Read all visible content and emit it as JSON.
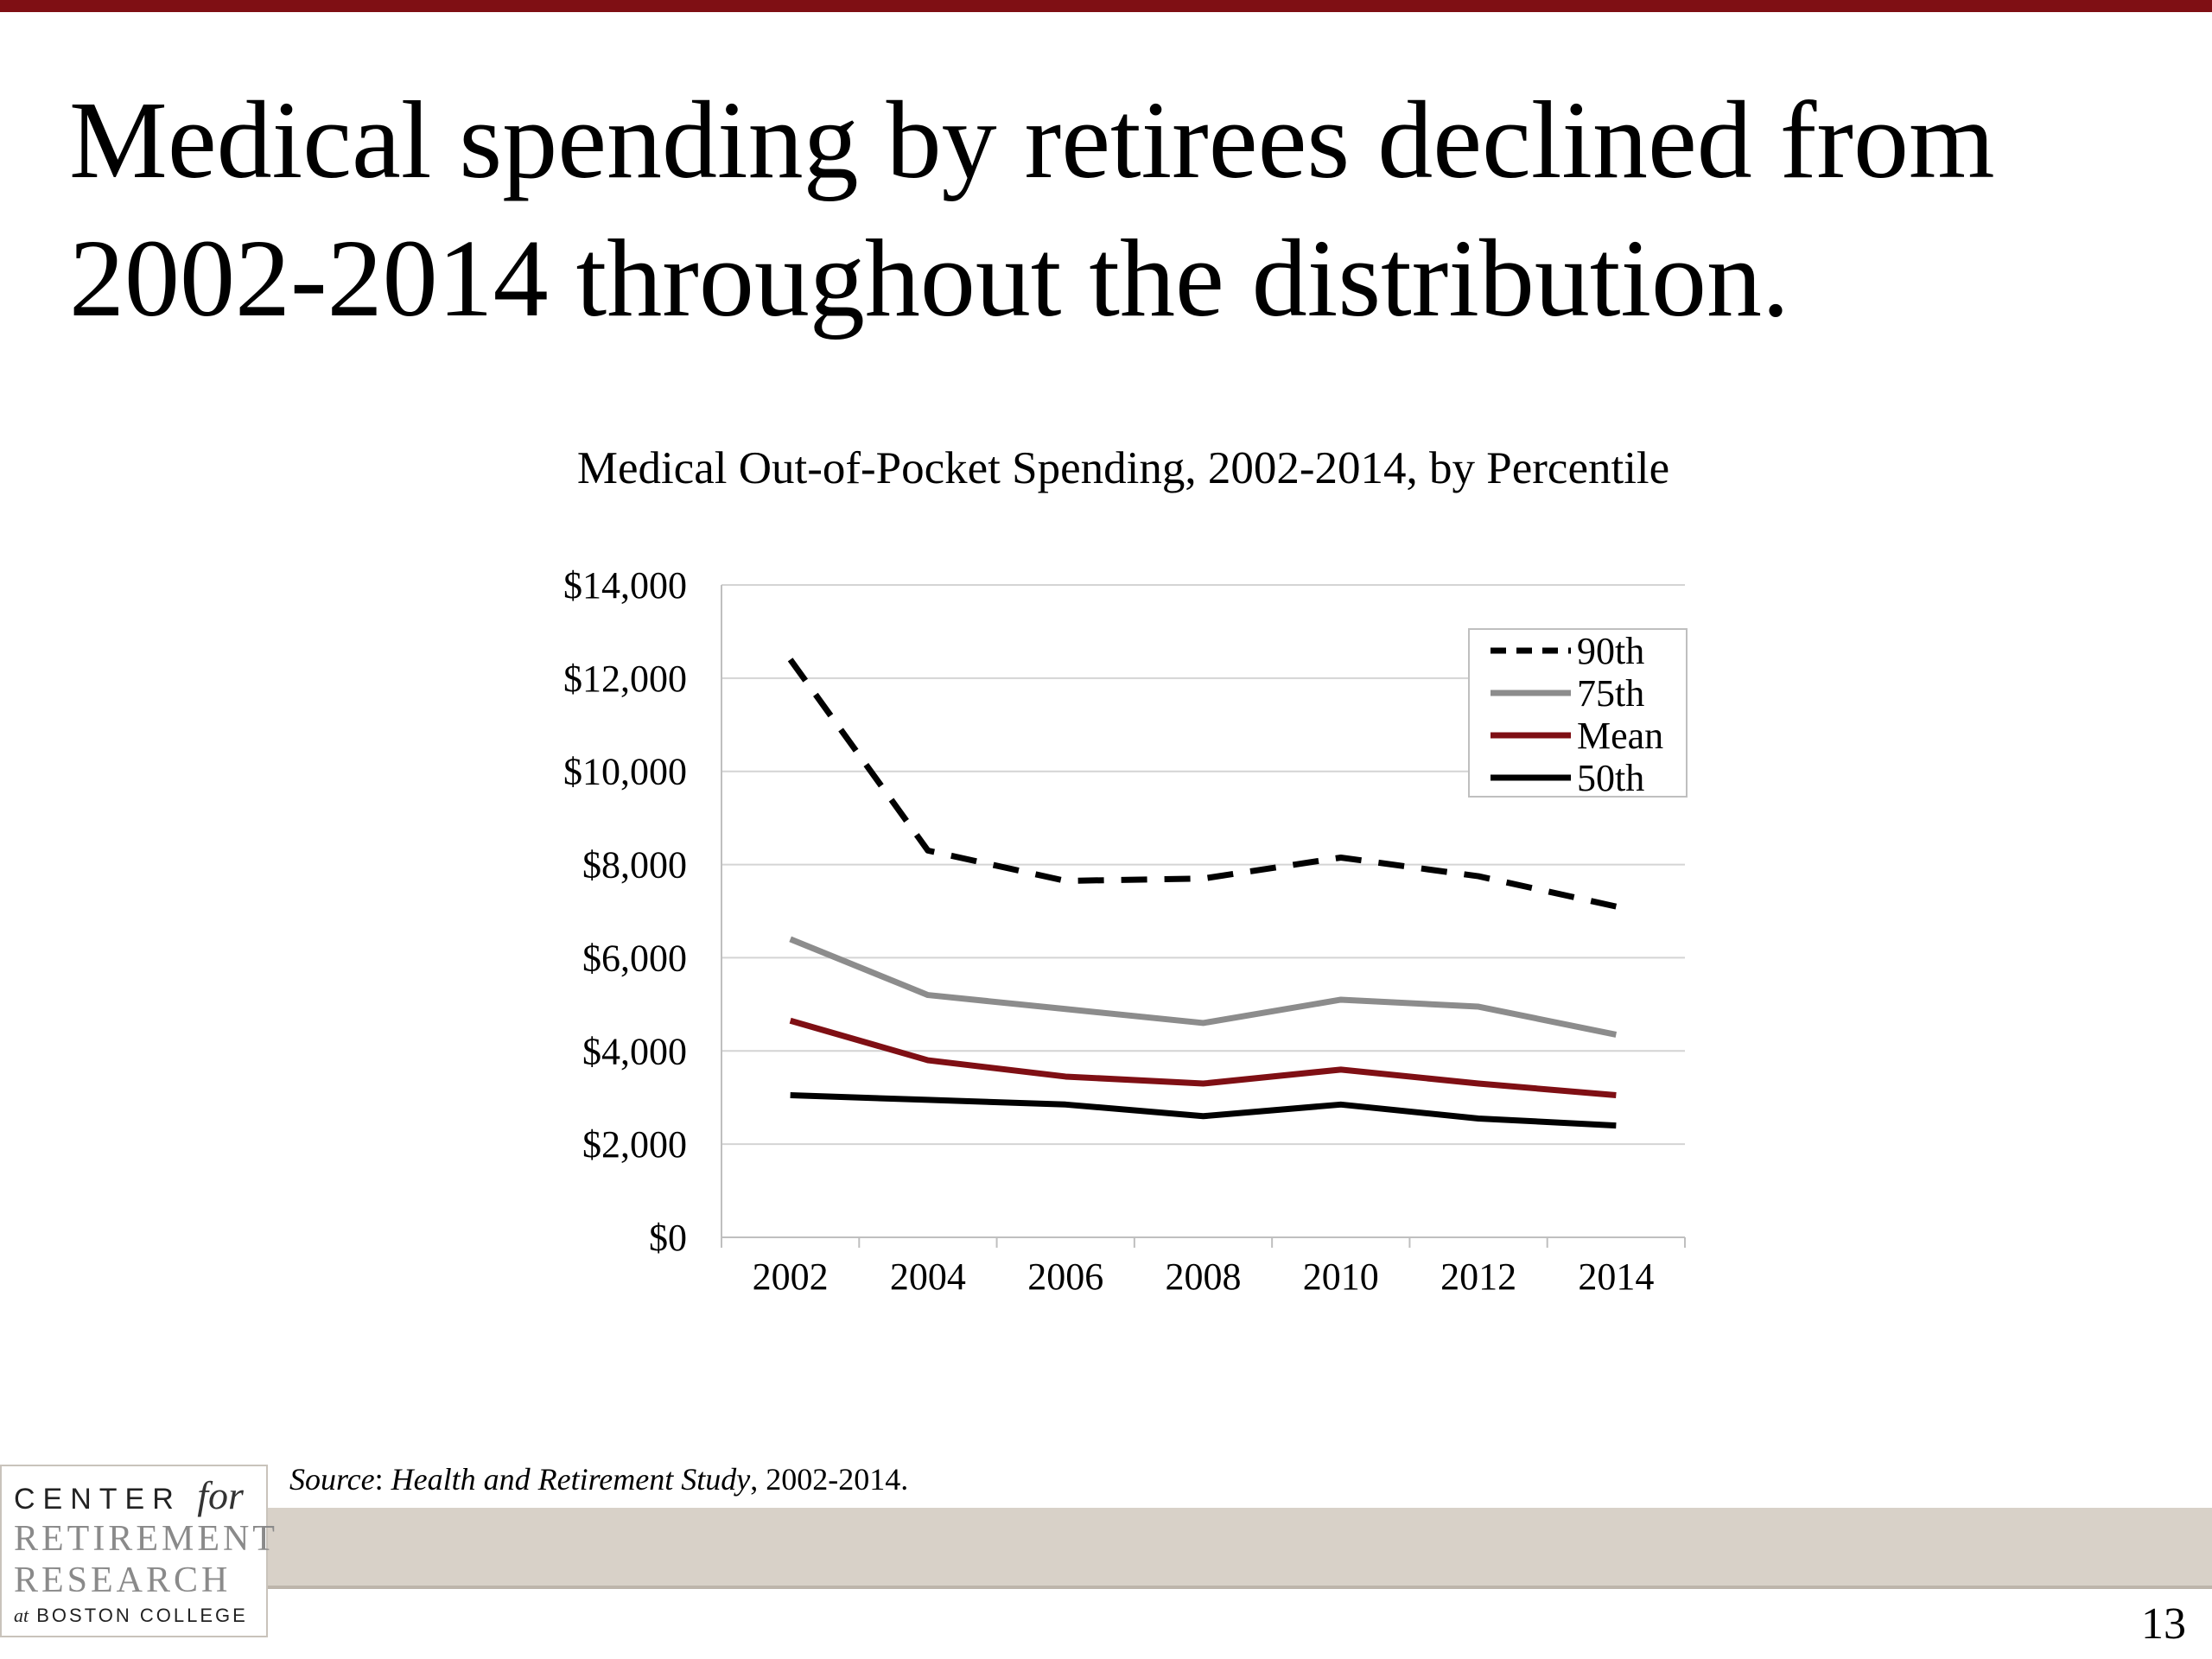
{
  "slide": {
    "title_line1": "Medical spending by retirees declined from",
    "title_line2": "2002-2014 throughout the distribution.",
    "source_label": "Source",
    "source_sep": ": ",
    "source_title": "Health and Retirement Study",
    "source_tail": ", 2002-2014.",
    "page_number": "13",
    "accent_color": "#7f0f14"
  },
  "logo": {
    "line1_a": "CENTER",
    "line1_b": "for",
    "line2": "RETIREMENT",
    "line3": "RESEARCH",
    "line4_a": "at",
    "line4_b": "BOSTON COLLEGE"
  },
  "chart_data": {
    "type": "line",
    "title": "Medical Out-of-Pocket Spending, 2002-2014, by Percentile",
    "xlabel": "",
    "ylabel": "",
    "categories": [
      "2002",
      "2004",
      "2006",
      "2008",
      "2010",
      "2012",
      "2014"
    ],
    "ylim": [
      0,
      14000
    ],
    "yticks": [
      "$0",
      "$2,000",
      "$4,000",
      "$6,000",
      "$8,000",
      "$10,000",
      "$12,000",
      "$14,000"
    ],
    "grid": true,
    "legend_position": "top-right",
    "series": [
      {
        "name": "90th",
        "values": [
          12400,
          8300,
          7650,
          7700,
          8150,
          7750,
          7100
        ],
        "color": "#000000",
        "dashed": true
      },
      {
        "name": "75th",
        "values": [
          6400,
          5200,
          4900,
          4600,
          5100,
          4950,
          4350
        ],
        "color": "#8c8c8c",
        "dashed": false
      },
      {
        "name": "Mean",
        "values": [
          4650,
          3800,
          3450,
          3300,
          3600,
          3300,
          3050
        ],
        "color": "#7f0f14",
        "dashed": false
      },
      {
        "name": "50th",
        "values": [
          3050,
          2950,
          2850,
          2600,
          2850,
          2550,
          2400
        ],
        "color": "#000000",
        "dashed": false
      }
    ]
  }
}
